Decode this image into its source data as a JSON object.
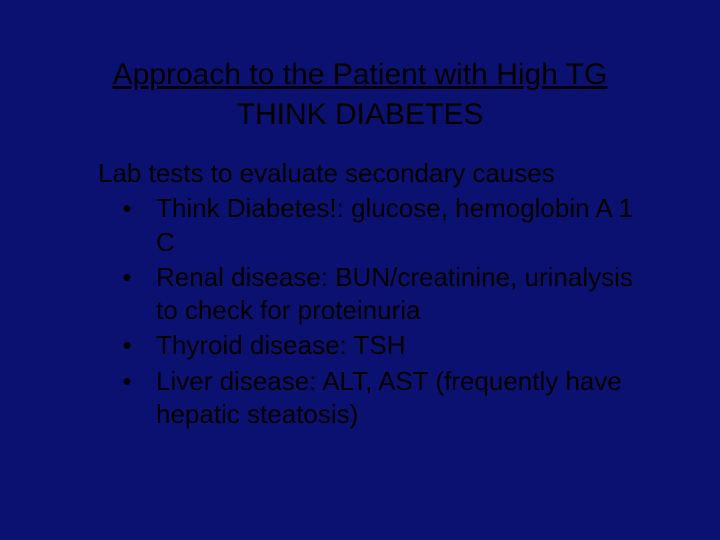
{
  "slide": {
    "background_color": "#0b1170",
    "text_color": "#000000",
    "title": {
      "line1": "Approach to the Patient with High TG",
      "line2": "THINK DIABETES",
      "fontsize": 30,
      "underline_line1": true
    },
    "body": {
      "lead": "Lab tests to evaluate secondary causes",
      "fontsize": 26,
      "bullet_char": "•",
      "bullets": [
        "Think Diabetes!: glucose, hemoglobin A 1 C",
        "Renal disease: BUN/creatinine, urinalysis to check for proteinuria",
        "Thyroid disease: TSH",
        "Liver disease: ALT, AST (frequently have hepatic steatosis)"
      ]
    }
  }
}
